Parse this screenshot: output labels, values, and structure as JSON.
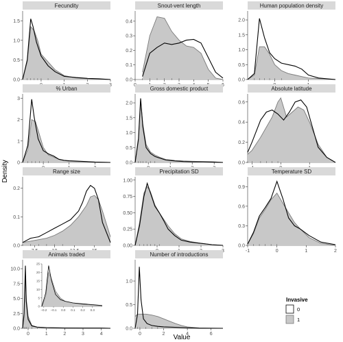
{
  "figure": {
    "xlabel": "Value",
    "ylabel": "Density",
    "legend": {
      "title": "Invasive",
      "placement": "right",
      "entries": [
        {
          "label": "0",
          "fill": "#ffffff"
        },
        {
          "label": "1",
          "fill": "#c8c8c8"
        }
      ]
    }
  },
  "colors": {
    "strip": "#d9d9d9",
    "invasive_fill": "#c8c8c8",
    "invasive_line": "#7a7a7a",
    "noninvasive_line": "#000000",
    "axis": "#333333"
  },
  "chart_data": [
    {
      "type": "area",
      "title": "Fecundity",
      "xlim": [
        -0.8,
        3
      ],
      "ylim": [
        0,
        1.75
      ],
      "xticks": [
        0,
        1,
        2,
        3
      ],
      "yticks": [
        0,
        0.5,
        1,
        1.5
      ],
      "ytick_labels": [
        "0.0",
        "0.5",
        "1.0",
        "1.5"
      ],
      "series": [
        {
          "name": "0",
          "x": [
            -0.8,
            -0.6,
            -0.45,
            -0.35,
            -0.2,
            0,
            0.3,
            0.6,
            1,
            1.5,
            2,
            2.5,
            3
          ],
          "y": [
            0,
            0.5,
            1.55,
            1.35,
            0.95,
            0.6,
            0.35,
            0.2,
            0.08,
            0.05,
            0.03,
            0.02,
            0
          ]
        },
        {
          "name": "1",
          "x": [
            -0.8,
            -0.6,
            -0.45,
            -0.3,
            -0.15,
            0,
            0.3,
            0.6,
            1,
            1.5,
            2,
            3
          ],
          "y": [
            0,
            0.45,
            1.35,
            1.25,
            1.0,
            0.65,
            0.45,
            0.25,
            0.1,
            0.04,
            0.02,
            0
          ]
        }
      ]
    },
    {
      "type": "area",
      "title": "Snout-vent length",
      "xlim": [
        0,
        6
      ],
      "ylim": [
        0,
        0.47
      ],
      "xticks": [
        0,
        1,
        2,
        3,
        4,
        5,
        6
      ],
      "yticks": [
        0,
        0.1,
        0.2,
        0.3,
        0.4
      ],
      "ytick_labels": [
        "0.0",
        "0.1",
        "0.2",
        "0.3",
        "0.4"
      ],
      "series": [
        {
          "name": "0",
          "x": [
            0.5,
            1,
            1.5,
            2,
            2.5,
            3,
            3.5,
            4,
            4.5,
            5,
            5.5,
            6
          ],
          "y": [
            0.02,
            0.18,
            0.22,
            0.25,
            0.24,
            0.25,
            0.27,
            0.275,
            0.25,
            0.15,
            0.05,
            0.01
          ]
        },
        {
          "name": "1",
          "x": [
            0.5,
            1,
            1.5,
            2,
            2.5,
            3,
            3.5,
            4,
            4.5,
            5,
            5.5,
            6
          ],
          "y": [
            0.05,
            0.3,
            0.43,
            0.42,
            0.33,
            0.27,
            0.23,
            0.22,
            0.18,
            0.07,
            0.01,
            0
          ]
        }
      ]
    },
    {
      "type": "area",
      "title": "Human population density",
      "xlim": [
        -0.8,
        1.8
      ],
      "ylim": [
        0,
        2.3
      ],
      "xticks": [
        0,
        1
      ],
      "yticks": [
        0,
        0.5,
        1,
        1.5,
        2
      ],
      "ytick_labels": [
        "0.0",
        "0.5",
        "1.0",
        "1.5",
        "2.0"
      ],
      "series": [
        {
          "name": "0",
          "x": [
            -0.8,
            -0.6,
            -0.45,
            -0.3,
            -0.15,
            0,
            0.2,
            0.4,
            0.6,
            0.8,
            1,
            1.3,
            1.8
          ],
          "y": [
            0,
            0.2,
            2.05,
            1.4,
            0.9,
            0.7,
            0.55,
            0.5,
            0.45,
            0.35,
            0.15,
            0.05,
            0
          ]
        },
        {
          "name": "1",
          "x": [
            -0.8,
            -0.6,
            -0.45,
            -0.3,
            -0.15,
            0,
            0.2,
            0.4,
            0.6,
            0.8,
            1,
            1.8
          ],
          "y": [
            0,
            0.15,
            1.1,
            1.1,
            0.85,
            0.5,
            0.3,
            0.2,
            0.15,
            0.1,
            0.05,
            0
          ]
        }
      ]
    },
    {
      "type": "area",
      "title": "% Urban",
      "xlim": [
        -0.8,
        2.6
      ],
      "ylim": [
        0,
        3.2
      ],
      "xticks": [
        0,
        1,
        2
      ],
      "yticks": [
        0,
        1,
        2,
        3
      ],
      "ytick_labels": [
        "0",
        "1",
        "2",
        "3"
      ],
      "series": [
        {
          "name": "0",
          "x": [
            -0.8,
            -0.6,
            -0.45,
            -0.35,
            -0.2,
            0,
            0.2,
            0.4,
            0.6,
            0.8,
            1,
            1.5,
            2,
            2.6
          ],
          "y": [
            0,
            0.8,
            2.95,
            2.1,
            1.1,
            0.55,
            0.4,
            0.3,
            0.15,
            0.1,
            0.08,
            0.05,
            0.02,
            0
          ]
        },
        {
          "name": "1",
          "x": [
            -0.8,
            -0.6,
            -0.45,
            -0.3,
            -0.15,
            0,
            0.2,
            0.4,
            0.6,
            0.8,
            1,
            1.5,
            2.6
          ],
          "y": [
            0,
            0.6,
            2.0,
            1.9,
            1.3,
            0.7,
            0.35,
            0.25,
            0.15,
            0.1,
            0.05,
            0.03,
            0
          ]
        }
      ]
    },
    {
      "type": "area",
      "title": "Gross domestic product",
      "xlim": [
        -0.6,
        3.4
      ],
      "ylim": [
        0,
        2.3
      ],
      "xticks": [
        0,
        1,
        2,
        3
      ],
      "yticks": [
        0,
        0.5,
        1,
        1.5,
        2
      ],
      "ytick_labels": [
        "0.0",
        "0.5",
        "1.0",
        "1.5",
        "2.0"
      ],
      "series": [
        {
          "name": "0",
          "x": [
            -0.6,
            -0.45,
            -0.35,
            -0.25,
            -0.1,
            0.1,
            0.3,
            0.5,
            0.8,
            1.2,
            1.6,
            2,
            2.5,
            3,
            3.4
          ],
          "y": [
            0,
            0.8,
            2.15,
            1.2,
            0.5,
            0.3,
            0.2,
            0.15,
            0.08,
            0.05,
            0.03,
            0.02,
            0.02,
            0.01,
            0
          ]
        },
        {
          "name": "1",
          "x": [
            -0.6,
            -0.45,
            -0.35,
            -0.25,
            -0.1,
            0.1,
            0.3,
            0.5,
            0.8,
            1.2,
            1.6,
            2,
            2.5,
            3,
            3.4
          ],
          "y": [
            0,
            0.7,
            2.1,
            1.3,
            0.6,
            0.35,
            0.25,
            0.18,
            0.1,
            0.07,
            0.05,
            0.04,
            0.03,
            0.02,
            0
          ]
        }
      ]
    },
    {
      "type": "area",
      "title": "Absolute latitude",
      "xlim": [
        -1.15,
        1.9
      ],
      "ylim": [
        0,
        0.68
      ],
      "xticks": [
        -1,
        0,
        1
      ],
      "yticks": [
        0,
        0.2,
        0.4,
        0.6
      ],
      "ytick_labels": [
        "0.0",
        "0.2",
        "0.4",
        "0.6"
      ],
      "series": [
        {
          "name": "0",
          "x": [
            -1.15,
            -1,
            -0.7,
            -0.5,
            -0.3,
            -0.1,
            0.1,
            0.3,
            0.5,
            0.7,
            0.9,
            1.1,
            1.3,
            1.6,
            1.9
          ],
          "y": [
            0.1,
            0.2,
            0.42,
            0.5,
            0.52,
            0.48,
            0.42,
            0.5,
            0.6,
            0.62,
            0.55,
            0.35,
            0.15,
            0.05,
            0
          ]
        },
        {
          "name": "1",
          "x": [
            -1.15,
            -1,
            -0.7,
            -0.5,
            -0.3,
            -0.1,
            0,
            0.2,
            0.4,
            0.6,
            0.8,
            1,
            1.3,
            1.6,
            1.9
          ],
          "y": [
            0.08,
            0.12,
            0.25,
            0.35,
            0.45,
            0.6,
            0.64,
            0.45,
            0.5,
            0.55,
            0.52,
            0.4,
            0.18,
            0.05,
            0
          ]
        }
      ]
    },
    {
      "type": "area",
      "title": "Range size",
      "xlim": [
        6,
        17
      ],
      "ylim": [
        0,
        0.24
      ],
      "xticks": [
        7.5,
        10,
        12.5,
        15
      ],
      "yticks": [
        0,
        0.1,
        0.2
      ],
      "ytick_labels": [
        "0.0",
        "0.1",
        "0.2"
      ],
      "series": [
        {
          "name": "0",
          "x": [
            6,
            7,
            8,
            9,
            10,
            11,
            12,
            13,
            13.5,
            14,
            14.5,
            15,
            15.5,
            16,
            17
          ],
          "y": [
            0.01,
            0.025,
            0.03,
            0.045,
            0.06,
            0.075,
            0.09,
            0.12,
            0.15,
            0.19,
            0.21,
            0.2,
            0.16,
            0.08,
            0.01
          ]
        },
        {
          "name": "1",
          "x": [
            6,
            7,
            8,
            9,
            10,
            11,
            12,
            13,
            14,
            14.5,
            15,
            15.5,
            16,
            17
          ],
          "y": [
            0.01,
            0.015,
            0.02,
            0.025,
            0.035,
            0.05,
            0.07,
            0.1,
            0.14,
            0.17,
            0.175,
            0.16,
            0.12,
            0.03
          ]
        }
      ]
    },
    {
      "type": "area",
      "title": "Precipitation SD",
      "xlim": [
        -1,
        3
      ],
      "ylim": [
        0,
        1.05
      ],
      "xticks": [
        0,
        1,
        2,
        3
      ],
      "yticks": [
        0,
        0.25,
        0.5,
        0.75,
        1
      ],
      "ytick_labels": [
        "0.00",
        "0.25",
        "0.50",
        "0.75",
        "1.00"
      ],
      "series": [
        {
          "name": "0",
          "x": [
            -1,
            -0.8,
            -0.6,
            -0.45,
            -0.3,
            -0.1,
            0.1,
            0.3,
            0.5,
            0.8,
            1.1,
            1.5,
            2,
            2.5,
            3
          ],
          "y": [
            0,
            0.3,
            0.75,
            0.95,
            0.8,
            0.6,
            0.5,
            0.38,
            0.25,
            0.15,
            0.08,
            0.05,
            0.03,
            0.01,
            0
          ]
        },
        {
          "name": "1",
          "x": [
            -1,
            -0.8,
            -0.6,
            -0.45,
            -0.3,
            -0.1,
            0.1,
            0.3,
            0.5,
            0.8,
            1.1,
            1.5,
            2,
            2.5,
            3
          ],
          "y": [
            0,
            0.35,
            0.8,
            0.9,
            0.82,
            0.62,
            0.5,
            0.4,
            0.3,
            0.18,
            0.1,
            0.06,
            0.03,
            0.01,
            0
          ]
        }
      ]
    },
    {
      "type": "area",
      "title": "Temperature SD",
      "xlim": [
        -1,
        2
      ],
      "ylim": [
        0,
        1.05
      ],
      "xticks": [
        -1,
        0,
        1,
        2
      ],
      "yticks": [
        0,
        0.3,
        0.6,
        0.9
      ],
      "ytick_labels": [
        "0.0",
        "0.3",
        "0.6",
        "0.9"
      ],
      "series": [
        {
          "name": "0",
          "x": [
            -1,
            -0.8,
            -0.6,
            -0.4,
            -0.2,
            0,
            0.2,
            0.4,
            0.6,
            0.8,
            1.1,
            1.5,
            2
          ],
          "y": [
            0.02,
            0.2,
            0.45,
            0.58,
            0.72,
            0.98,
            0.72,
            0.42,
            0.3,
            0.25,
            0.15,
            0.05,
            0.01
          ]
        },
        {
          "name": "1",
          "x": [
            -1,
            -0.8,
            -0.6,
            -0.4,
            -0.2,
            0,
            0.2,
            0.4,
            0.6,
            0.8,
            1.1,
            1.5,
            2
          ],
          "y": [
            0.02,
            0.18,
            0.42,
            0.55,
            0.7,
            0.8,
            0.65,
            0.5,
            0.35,
            0.25,
            0.12,
            0.03,
            0
          ]
        }
      ]
    },
    {
      "type": "area",
      "title": "Animals traded",
      "xlim": [
        -0.3,
        4.5
      ],
      "ylim": [
        0,
        11.5
      ],
      "xticks": [
        0,
        1,
        2,
        3,
        4
      ],
      "yticks": [
        0,
        2.5,
        5,
        7.5,
        10
      ],
      "ytick_labels": [
        "0.0",
        "2.5",
        "5.0",
        "7.5",
        "10.0"
      ],
      "series": [
        {
          "name": "0",
          "x": [
            -0.3,
            -0.22,
            -0.15,
            -0.1,
            0,
            0.2,
            0.5,
            1,
            2,
            3,
            4,
            4.5
          ],
          "y": [
            0,
            2.5,
            10.5,
            4.5,
            1.5,
            0.4,
            0.2,
            0.1,
            0.05,
            0.04,
            0.03,
            0
          ]
        },
        {
          "name": "1",
          "x": [
            -0.3,
            -0.22,
            -0.15,
            -0.1,
            0,
            0.2,
            0.5,
            1,
            2,
            3,
            4,
            4.5
          ],
          "y": [
            0,
            2.0,
            9.0,
            5.0,
            2.0,
            0.5,
            0.2,
            0.1,
            0.05,
            0.03,
            0.02,
            0
          ]
        }
      ],
      "inset": {
        "xlim": [
          -0.22,
          0.4
        ],
        "ylim": [
          0,
          25
        ],
        "xticks": [
          -0.2,
          -0.1,
          0,
          0.1,
          0.2,
          0.3
        ],
        "xtick_labels": [
          "−0.2",
          "−0.1",
          "0.0",
          "0.1",
          "0.2",
          "0.3"
        ],
        "yticks": [
          0,
          5,
          10,
          15,
          20,
          25
        ],
        "ytick_labels": [
          "0",
          "5",
          "10",
          "15",
          "20",
          "25"
        ],
        "series": [
          {
            "name": "0",
            "x": [
              -0.22,
              -0.18,
              -0.15,
              -0.12,
              -0.08,
              -0.03,
              0.02,
              0.1,
              0.2,
              0.3,
              0.4
            ],
            "y": [
              0,
              8,
              24,
              15,
              7,
              4,
              3,
              2,
              1.5,
              1,
              0.5
            ]
          },
          {
            "name": "1",
            "x": [
              -0.22,
              -0.18,
              -0.15,
              -0.12,
              -0.08,
              -0.03,
              0.02,
              0.1,
              0.2,
              0.3,
              0.4
            ],
            "y": [
              0,
              6,
              20,
              16,
              9,
              5,
              3,
              2,
              1.2,
              0.8,
              0.3
            ]
          }
        ]
      }
    },
    {
      "type": "area",
      "title": "Number of introductions",
      "xlim": [
        -0.4,
        7
      ],
      "ylim": [
        0,
        1.45
      ],
      "xticks": [
        0,
        2,
        4,
        6
      ],
      "yticks": [
        0,
        0.5,
        1
      ],
      "ytick_labels": [
        "0.0",
        "0.5",
        "1.0"
      ],
      "series": [
        {
          "name": "0",
          "x": [
            -0.4,
            -0.2,
            -0.05,
            0.1,
            0.3,
            0.6,
            1,
            1.5,
            2,
            3,
            4,
            5,
            7
          ],
          "y": [
            0,
            0.3,
            1.3,
            0.6,
            0.2,
            0.1,
            0.06,
            0.04,
            0.03,
            0.02,
            0.01,
            0,
            0
          ]
        },
        {
          "name": "1",
          "x": [
            -0.4,
            -0.2,
            0,
            0.5,
            1,
            1.5,
            2,
            2.5,
            3,
            3.5,
            4,
            5,
            7
          ],
          "y": [
            0.25,
            0.3,
            0.3,
            0.3,
            0.28,
            0.25,
            0.2,
            0.15,
            0.1,
            0.06,
            0.03,
            0.01,
            0
          ]
        }
      ]
    }
  ]
}
